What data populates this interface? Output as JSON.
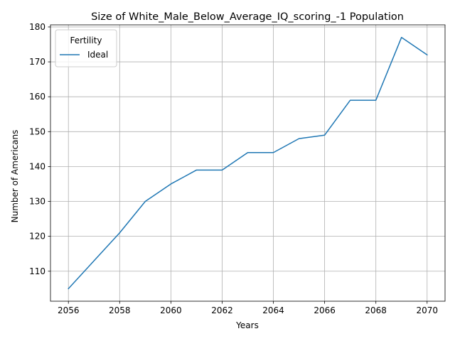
{
  "chart_data": {
    "type": "line",
    "title": "Size of White_Male_Below_Average_IQ_scoring_-1 Population",
    "xlabel": "Years",
    "ylabel": "Number of Americans",
    "x": [
      2056,
      2057,
      2058,
      2059,
      2060,
      2061,
      2062,
      2063,
      2064,
      2065,
      2066,
      2067,
      2068,
      2069,
      2070
    ],
    "series": [
      {
        "name": "Ideal",
        "color": "#1f77b4",
        "values": [
          105,
          113,
          121,
          130,
          135,
          139,
          139,
          144,
          144,
          148,
          149,
          159,
          159,
          177,
          172
        ]
      }
    ],
    "xticks": [
      2056,
      2058,
      2060,
      2062,
      2064,
      2066,
      2068,
      2070
    ],
    "yticks": [
      110,
      120,
      130,
      140,
      150,
      160,
      170,
      180
    ],
    "xlim": [
      2055.3,
      2070.7
    ],
    "ylim": [
      101.4,
      180.6
    ],
    "grid": true,
    "legend": {
      "title": "Fertility",
      "placement": "upper-left"
    }
  }
}
